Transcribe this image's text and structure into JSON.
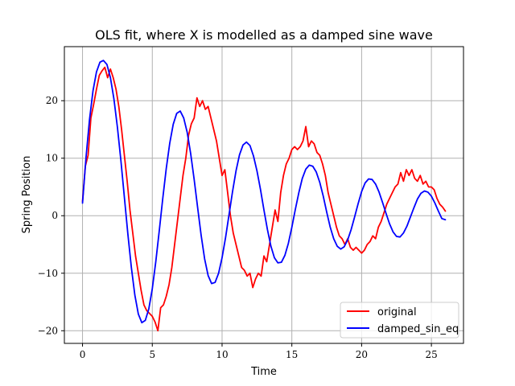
{
  "chart_data": {
    "type": "line",
    "title": "OLS fit, where X is modelled as a damped sine wave",
    "xlabel": "Time",
    "ylabel": "Spring Position",
    "xlim": [
      -1.3,
      27.3
    ],
    "ylim": [
      -22.2,
      29.4
    ],
    "xticks": [
      0,
      5,
      10,
      15,
      20,
      25
    ],
    "xtick_labels": [
      "0",
      "5",
      "10",
      "15",
      "20",
      "25"
    ],
    "yticks": [
      -20,
      -10,
      0,
      10,
      20
    ],
    "ytick_labels": [
      "−20",
      "−10",
      "0",
      "10",
      "20"
    ],
    "grid": true,
    "legend_position": "lower-right",
    "series": [
      {
        "name": "original",
        "color": "#ff0000",
        "x": [
          0,
          0.2,
          0.4,
          0.6,
          0.8,
          1.0,
          1.2,
          1.4,
          1.6,
          1.8,
          2.0,
          2.2,
          2.4,
          2.6,
          2.8,
          3.0,
          3.2,
          3.4,
          3.6,
          3.8,
          4.0,
          4.2,
          4.4,
          4.6,
          4.8,
          5.0,
          5.2,
          5.4,
          5.6,
          5.8,
          6.0,
          6.2,
          6.4,
          6.6,
          6.8,
          7.0,
          7.2,
          7.4,
          7.6,
          7.8,
          8.0,
          8.2,
          8.4,
          8.6,
          8.8,
          9.0,
          9.2,
          9.4,
          9.6,
          9.8,
          10.0,
          10.2,
          10.4,
          10.6,
          10.8,
          11.0,
          11.2,
          11.4,
          11.6,
          11.8,
          12.0,
          12.2,
          12.4,
          12.6,
          12.8,
          13.0,
          13.2,
          13.4,
          13.6,
          13.8,
          14.0,
          14.2,
          14.4,
          14.6,
          14.8,
          15.0,
          15.2,
          15.4,
          15.6,
          15.8,
          16.0,
          16.2,
          16.4,
          16.6,
          16.8,
          17.0,
          17.2,
          17.4,
          17.6,
          17.8,
          18.0,
          18.2,
          18.4,
          18.6,
          18.8,
          19.0,
          19.2,
          19.4,
          19.6,
          19.8,
          20.0,
          20.2,
          20.4,
          20.6,
          20.8,
          21.0,
          21.2,
          21.4,
          21.6,
          21.8,
          22.0,
          22.2,
          22.4,
          22.6,
          22.8,
          23.0,
          23.2,
          23.4,
          23.6,
          23.8,
          24.0,
          24.2,
          24.4,
          24.6,
          24.8,
          25.0,
          25.2,
          25.4,
          25.6,
          25.8,
          26.0
        ],
        "y": [
          2.5,
          8.6,
          10.5,
          17.0,
          19.4,
          22.0,
          24.4,
          25.2,
          25.8,
          24.0,
          25.5,
          24.0,
          22.0,
          19.0,
          15.0,
          10.5,
          6.0,
          1.0,
          -3.0,
          -7.0,
          -10.0,
          -13.0,
          -15.5,
          -16.5,
          -17.0,
          -17.5,
          -18.5,
          -20.0,
          -16.0,
          -15.5,
          -14.0,
          -12.0,
          -9.0,
          -5.0,
          -1.0,
          3.0,
          7.0,
          10.0,
          14.0,
          16.0,
          17.0,
          20.5,
          19.0,
          20.0,
          18.5,
          19.0,
          17.0,
          15.0,
          13.0,
          10.0,
          7.0,
          8.0,
          4.0,
          0.0,
          -3.0,
          -5.0,
          -7.0,
          -9.0,
          -9.5,
          -10.5,
          -10.0,
          -12.5,
          -11.0,
          -10.0,
          -10.5,
          -7.0,
          -8.0,
          -5.0,
          -2.0,
          1.0,
          -1.0,
          4.0,
          7.0,
          9.0,
          10.0,
          11.5,
          12.0,
          11.5,
          12.0,
          13.0,
          15.5,
          12.0,
          13.0,
          12.5,
          11.0,
          10.5,
          9.0,
          7.0,
          4.0,
          2.0,
          0.0,
          -2.0,
          -3.5,
          -4.0,
          -5.0,
          -4.0,
          -5.5,
          -6.0,
          -5.5,
          -6.0,
          -6.5,
          -6.0,
          -5.0,
          -4.5,
          -3.5,
          -4.0,
          -2.0,
          -1.0,
          0.5,
          2.0,
          3.0,
          4.0,
          5.0,
          5.5,
          7.5,
          6.0,
          8.0,
          7.0,
          8.0,
          6.5,
          6.0,
          7.0,
          5.5,
          6.0,
          5.0,
          5.0,
          4.5,
          3.0,
          2.0,
          1.5,
          0.8
        ]
      },
      {
        "name": "damped_sin_eq",
        "color": "#0000ff",
        "x": [
          0,
          0.25,
          0.5,
          0.75,
          1.0,
          1.25,
          1.5,
          1.75,
          2.0,
          2.25,
          2.5,
          2.75,
          3.0,
          3.25,
          3.5,
          3.75,
          4.0,
          4.25,
          4.5,
          4.75,
          5.0,
          5.25,
          5.5,
          5.75,
          6.0,
          6.25,
          6.5,
          6.75,
          7.0,
          7.25,
          7.5,
          7.75,
          8.0,
          8.25,
          8.5,
          8.75,
          9.0,
          9.25,
          9.5,
          9.75,
          10.0,
          10.25,
          10.5,
          10.75,
          11.0,
          11.25,
          11.5,
          11.75,
          12.0,
          12.25,
          12.5,
          12.75,
          13.0,
          13.25,
          13.5,
          13.75,
          14.0,
          14.25,
          14.5,
          14.75,
          15.0,
          15.25,
          15.5,
          15.75,
          16.0,
          16.25,
          16.5,
          16.75,
          17.0,
          17.25,
          17.5,
          17.75,
          18.0,
          18.25,
          18.5,
          18.75,
          19.0,
          19.25,
          19.5,
          19.75,
          20.0,
          20.25,
          20.5,
          20.75,
          21.0,
          21.25,
          21.5,
          21.75,
          22.0,
          22.25,
          22.5,
          22.75,
          23.0,
          23.25,
          23.5,
          23.75,
          24.0,
          24.25,
          24.5,
          24.75,
          25.0,
          25.25,
          25.5,
          25.75,
          26.0
        ],
        "y": [
          2.2,
          10.1,
          16.7,
          21.7,
          25.0,
          26.7,
          27.0,
          26.3,
          24.0,
          20.3,
          15.4,
          9.6,
          3.2,
          -3.2,
          -9.0,
          -13.8,
          -17.1,
          -18.6,
          -18.2,
          -16.2,
          -12.7,
          -8.0,
          -2.6,
          3.0,
          8.2,
          12.6,
          15.9,
          17.8,
          18.2,
          17.0,
          14.5,
          10.8,
          6.3,
          1.4,
          -3.4,
          -7.5,
          -10.4,
          -11.8,
          -11.6,
          -10.0,
          -7.3,
          -3.8,
          0.2,
          4.2,
          7.8,
          10.6,
          12.3,
          12.8,
          12.2,
          10.4,
          7.8,
          4.6,
          1.0,
          -2.4,
          -5.3,
          -7.3,
          -8.2,
          -8.1,
          -6.9,
          -4.8,
          -2.0,
          1.1,
          4.0,
          6.5,
          8.1,
          8.8,
          8.6,
          7.6,
          5.8,
          3.4,
          0.6,
          -2.0,
          -4.0,
          -5.3,
          -5.8,
          -5.4,
          -4.2,
          -2.4,
          -0.2,
          2.1,
          4.2,
          5.7,
          6.4,
          6.3,
          5.5,
          4.1,
          2.3,
          0.4,
          -1.4,
          -2.8,
          -3.6,
          -3.7,
          -3.0,
          -1.8,
          -0.2,
          1.4,
          2.9,
          3.9,
          4.3,
          4.1,
          3.4,
          2.2,
          0.8,
          -0.5,
          -0.7
        ]
      }
    ]
  }
}
